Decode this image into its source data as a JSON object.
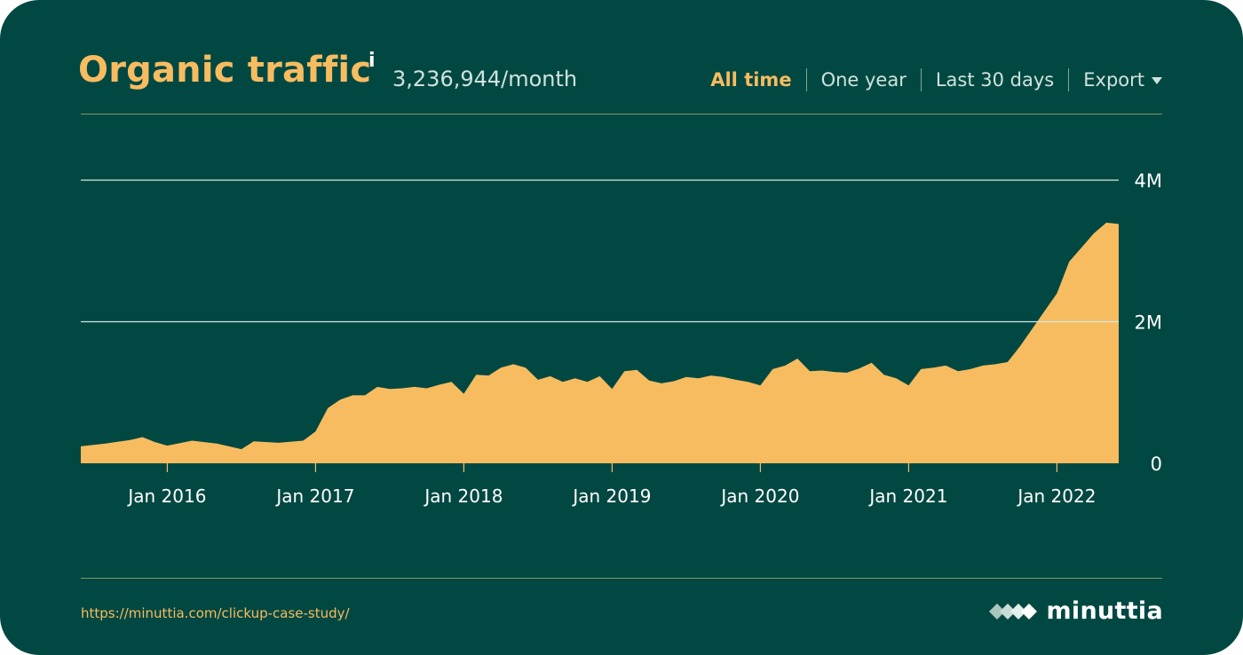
{
  "header": {
    "title": "Organic traffic",
    "info_marker": "i",
    "metric": "3,236,944/month"
  },
  "range_menu": {
    "items": [
      {
        "label": "All time",
        "active": true
      },
      {
        "label": "One year",
        "active": false
      },
      {
        "label": "Last 30 days",
        "active": false
      }
    ],
    "export_label": "Export"
  },
  "footer": {
    "url": "https://minuttia.com/clickup-case-study/",
    "brand": "minuttia"
  },
  "colors": {
    "background": "#024842",
    "accent": "#f7bc60",
    "text_muted": "#cfe3dc"
  },
  "chart_data": {
    "type": "area",
    "title": "",
    "xlabel": "",
    "ylabel": "",
    "x_range": [
      "2015-06",
      "2022-06"
    ],
    "ylim": [
      0,
      4000000
    ],
    "yticks": [
      0,
      2000000,
      4000000
    ],
    "ytick_labels": [
      "0",
      "2M",
      "4M"
    ],
    "xticks": [
      "2016-01",
      "2017-01",
      "2018-01",
      "2019-01",
      "2020-01",
      "2021-01",
      "2022-01"
    ],
    "xtick_labels": [
      "Jan 2016",
      "Jan 2017",
      "Jan 2018",
      "Jan 2019",
      "Jan 2020",
      "Jan 2021",
      "Jan 2022"
    ],
    "grid": true,
    "series": [
      {
        "color": "#f7bc60",
        "points": [
          [
            "2015-06",
            240000
          ],
          [
            "2015-08",
            280000
          ],
          [
            "2015-10",
            330000
          ],
          [
            "2015-11",
            370000
          ],
          [
            "2015-12",
            300000
          ],
          [
            "2016-01",
            250000
          ],
          [
            "2016-03",
            320000
          ],
          [
            "2016-05",
            280000
          ],
          [
            "2016-07",
            200000
          ],
          [
            "2016-08",
            310000
          ],
          [
            "2016-10",
            290000
          ],
          [
            "2016-12",
            320000
          ],
          [
            "2017-01",
            450000
          ],
          [
            "2017-02",
            780000
          ],
          [
            "2017-03",
            900000
          ],
          [
            "2017-04",
            960000
          ],
          [
            "2017-05",
            960000
          ],
          [
            "2017-06",
            1080000
          ],
          [
            "2017-07",
            1050000
          ],
          [
            "2017-08",
            1060000
          ],
          [
            "2017-09",
            1080000
          ],
          [
            "2017-10",
            1060000
          ],
          [
            "2017-11",
            1110000
          ],
          [
            "2017-12",
            1150000
          ],
          [
            "2018-01",
            980000
          ],
          [
            "2018-02",
            1250000
          ],
          [
            "2018-03",
            1240000
          ],
          [
            "2018-04",
            1350000
          ],
          [
            "2018-05",
            1400000
          ],
          [
            "2018-06",
            1350000
          ],
          [
            "2018-07",
            1180000
          ],
          [
            "2018-08",
            1230000
          ],
          [
            "2018-09",
            1150000
          ],
          [
            "2018-10",
            1200000
          ],
          [
            "2018-11",
            1150000
          ],
          [
            "2018-12",
            1230000
          ],
          [
            "2019-01",
            1050000
          ],
          [
            "2019-02",
            1300000
          ],
          [
            "2019-03",
            1320000
          ],
          [
            "2019-04",
            1170000
          ],
          [
            "2019-05",
            1130000
          ],
          [
            "2019-06",
            1160000
          ],
          [
            "2019-07",
            1220000
          ],
          [
            "2019-08",
            1200000
          ],
          [
            "2019-09",
            1240000
          ],
          [
            "2019-10",
            1220000
          ],
          [
            "2019-11",
            1180000
          ],
          [
            "2019-12",
            1150000
          ],
          [
            "2020-01",
            1100000
          ],
          [
            "2020-02",
            1330000
          ],
          [
            "2020-03",
            1380000
          ],
          [
            "2020-04",
            1480000
          ],
          [
            "2020-05",
            1300000
          ],
          [
            "2020-06",
            1310000
          ],
          [
            "2020-07",
            1290000
          ],
          [
            "2020-08",
            1280000
          ],
          [
            "2020-09",
            1340000
          ],
          [
            "2020-10",
            1420000
          ],
          [
            "2020-11",
            1250000
          ],
          [
            "2020-12",
            1200000
          ],
          [
            "2021-01",
            1100000
          ],
          [
            "2021-02",
            1330000
          ],
          [
            "2021-03",
            1350000
          ],
          [
            "2021-04",
            1380000
          ],
          [
            "2021-05",
            1300000
          ],
          [
            "2021-06",
            1330000
          ],
          [
            "2021-07",
            1380000
          ],
          [
            "2021-08",
            1400000
          ],
          [
            "2021-09",
            1430000
          ],
          [
            "2021-10",
            1650000
          ],
          [
            "2021-11",
            1900000
          ],
          [
            "2021-12",
            2150000
          ],
          [
            "2022-01",
            2400000
          ],
          [
            "2022-02",
            2850000
          ],
          [
            "2022-03",
            3050000
          ],
          [
            "2022-04",
            3250000
          ],
          [
            "2022-05",
            3400000
          ],
          [
            "2022-06",
            3380000
          ]
        ]
      }
    ]
  }
}
